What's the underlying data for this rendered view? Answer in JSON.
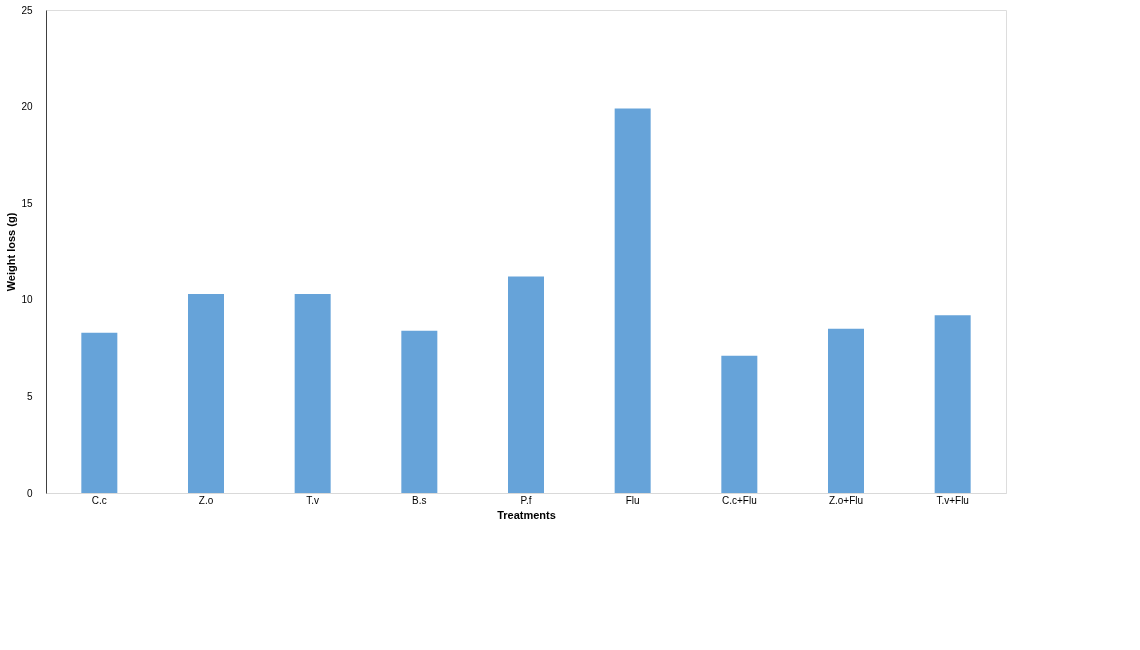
{
  "chart_data": {
    "type": "bar",
    "xlabel": "Treatments",
    "ylabel": "Weight loss (g)",
    "categories": [
      "C.c",
      "Z.o",
      "T.v",
      "B.s",
      "P.f",
      "Flu",
      "C.c+Flu",
      "Z.o+Flu",
      "T.v+Flu"
    ],
    "values": [
      8.3,
      10.3,
      10.3,
      8.4,
      11.2,
      19.9,
      7.1,
      8.5,
      9.2
    ],
    "color": "#66a3d9",
    "ylim": [
      0,
      25
    ],
    "yticks": [
      0,
      5,
      10,
      15,
      20,
      25
    ],
    "grid": false
  }
}
